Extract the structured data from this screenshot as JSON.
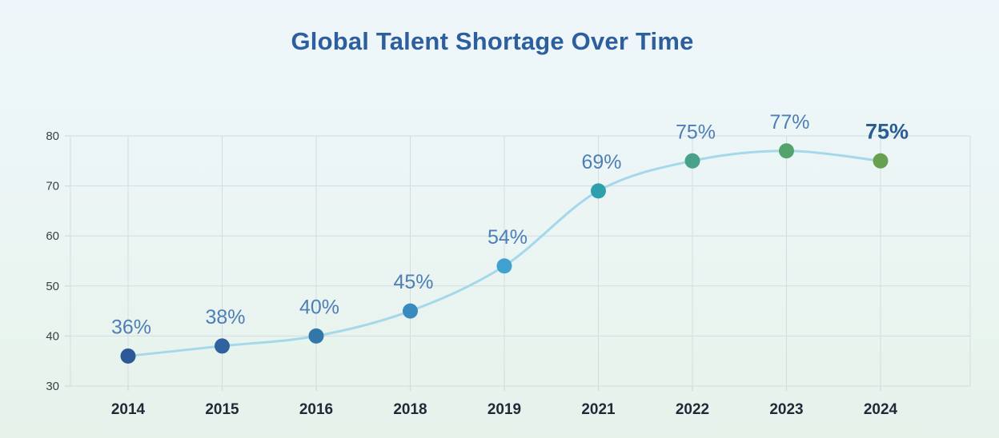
{
  "page": {
    "background_top": "#eef6fb",
    "background_bottom": "#e6f2ea"
  },
  "chart_data": {
    "type": "line",
    "title": "Global Talent Shortage Over Time",
    "title_color": "#2d5f9e",
    "categories": [
      "2014",
      "2015",
      "2016",
      "2018",
      "2019",
      "2021",
      "2022",
      "2023",
      "2024"
    ],
    "values": [
      36,
      38,
      40,
      45,
      54,
      69,
      75,
      77,
      75
    ],
    "point_labels": [
      "36%",
      "38%",
      "40%",
      "45%",
      "54%",
      "69%",
      "75%",
      "77%",
      "75%"
    ],
    "point_colors": [
      "#2d5a96",
      "#30629e",
      "#3377a9",
      "#3a8bbd",
      "#41a2cf",
      "#2f9fae",
      "#47a18b",
      "#52a46c",
      "#67a14f"
    ],
    "line_color": "#a5d8eb",
    "label_color": "#4d7fb6",
    "last_label_color": "#2a5d92",
    "grid_color": "#d6dbe0",
    "x_tick_color": "#1f2937",
    "y_tick_color": "#3a3f45",
    "yticks": [
      30,
      40,
      50,
      60,
      70,
      80
    ],
    "ylim": [
      30,
      80
    ],
    "grid": true,
    "legend": false,
    "xlabel": "",
    "ylabel": ""
  }
}
